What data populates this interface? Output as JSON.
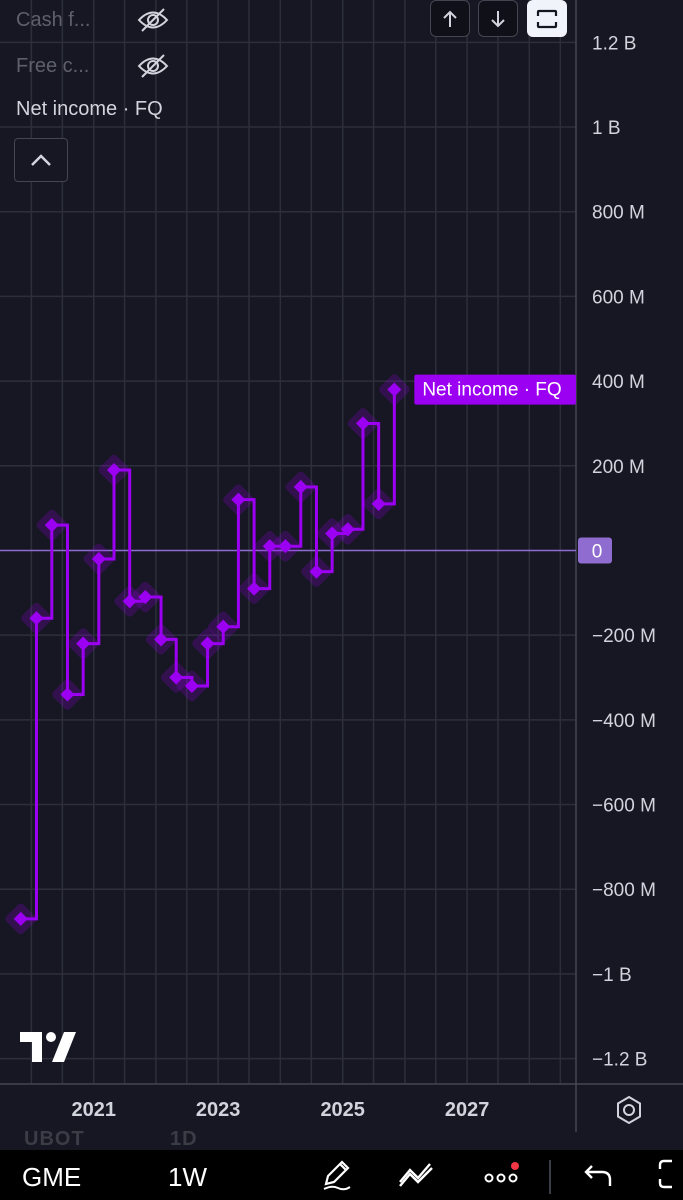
{
  "legend": {
    "rows": [
      {
        "label": "Cash f...",
        "icon": "eye-off-icon"
      },
      {
        "label": "Free c...",
        "icon": "eye-off-icon"
      }
    ],
    "active": "Net income · FQ",
    "collapse_icon": "chevron-up-icon"
  },
  "top_buttons": [
    {
      "name": "scroll-up-button",
      "icon": "arrow-up-icon"
    },
    {
      "name": "scroll-down-button",
      "icon": "arrow-down-icon"
    },
    {
      "name": "fullscreen-button",
      "icon": "fullscreen-icon"
    }
  ],
  "chart_data": {
    "type": "line",
    "step": true,
    "series": [
      {
        "name": "Net income · FQ",
        "color": "#9c00f2",
        "x": [
          "2019-10-31",
          "2020-01-31",
          "2020-04-30",
          "2020-07-31",
          "2020-10-31",
          "2021-01-31",
          "2021-04-30",
          "2021-07-31",
          "2021-10-31",
          "2022-01-31",
          "2022-04-30",
          "2022-07-31",
          "2022-10-31",
          "2023-01-31",
          "2023-04-30",
          "2023-07-31",
          "2023-10-31",
          "2024-01-31",
          "2024-04-30",
          "2024-07-31",
          "2024-10-31",
          "2025-01-31",
          "2025-04-30",
          "2025-07-31"
        ],
        "y": [
          -870,
          -160,
          60,
          -340,
          -220,
          -20,
          190,
          -120,
          -110,
          -210,
          -300,
          -320,
          -220,
          -180,
          120,
          -90,
          10,
          10,
          150,
          -50,
          40,
          50,
          300,
          110
        ]
      }
    ],
    "last_value_label": "Net income · FQ",
    "last_point": {
      "x": "2025-10-31",
      "y": 380
    },
    "x_ticks": [
      "2021",
      "2023",
      "2025",
      "2027"
    ],
    "y_ticks": [
      "1.2 B",
      "1 B",
      "800 M",
      "600 M",
      "400 M",
      "200 M",
      "0",
      "−200 M",
      "−400 M",
      "−600 M",
      "−800 M",
      "−1 B",
      "−1.2 B"
    ],
    "y_tick_values": [
      1200,
      1000,
      800,
      600,
      400,
      200,
      0,
      -200,
      -400,
      -600,
      -800,
      -1000,
      -1200
    ],
    "y_unit": "millions",
    "ylim": [
      -1260,
      1300
    ],
    "xlim": [
      "2019-07-01",
      "2028-10-01"
    ],
    "zero_label": "0",
    "grid": true
  },
  "symbols_ghost": {
    "symbol": "UBOT",
    "interval": "1D"
  },
  "bottom_bar": {
    "symbol": "GME",
    "interval": "1W",
    "icons": [
      "pencil-icon",
      "drawing-tools-icon",
      "more-icon",
      "undo-icon",
      "fullscreen-icon"
    ]
  },
  "settings_icon": "gear-icon",
  "colors": {
    "background": "#161722",
    "grid": "#2c2f3b",
    "line": "#9c00f2",
    "zero": "#8f6ccf"
  }
}
